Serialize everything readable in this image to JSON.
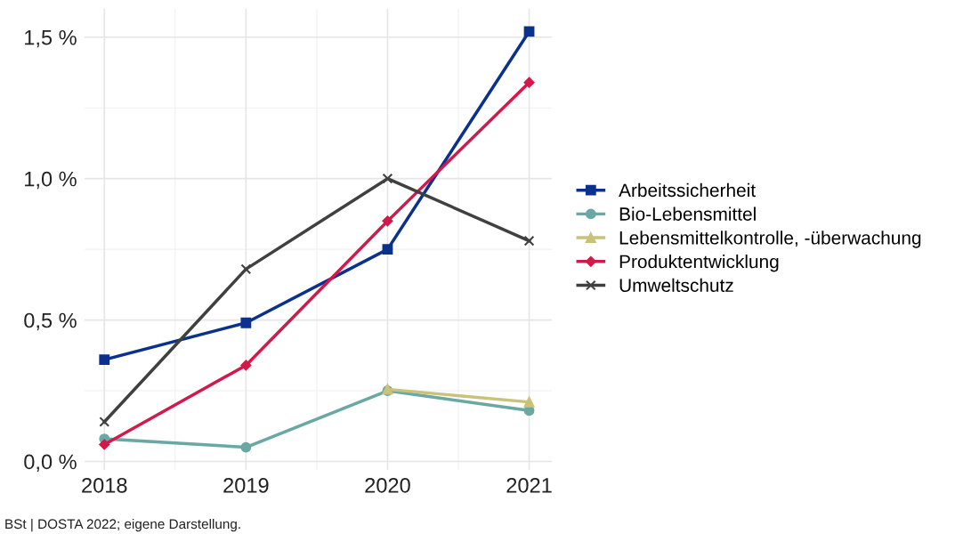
{
  "chart_data": {
    "type": "line",
    "x": [
      2018,
      2019,
      2020,
      2021
    ],
    "xlim": [
      2017.86,
      2021.16
    ],
    "xticks": [
      2018,
      2019,
      2020,
      2021
    ],
    "ylim": [
      -0.03,
      1.6
    ],
    "yticks": [
      {
        "value": 0,
        "label": "0,0 %"
      },
      {
        "value": 0.5,
        "label": "0,5 %"
      },
      {
        "value": 1.0,
        "label": "1,0 %"
      },
      {
        "value": 1.5,
        "label": "1,5 %"
      }
    ],
    "grid": true,
    "legend": "right",
    "series": [
      {
        "name": "Arbeitssicherheit",
        "color": "#0b318f",
        "marker": "square",
        "values": [
          0.36,
          0.49,
          0.75,
          1.52
        ]
      },
      {
        "name": "Bio-Lebensmittel",
        "color": "#6aa8a4",
        "marker": "circle",
        "values": [
          0.08,
          0.05,
          0.25,
          0.18
        ]
      },
      {
        "name": "Lebensmittelkontrolle, -überwachung",
        "color": "#c9c27a",
        "marker": "triangle",
        "values": [
          null,
          null,
          0.255,
          0.21
        ]
      },
      {
        "name": "Produktentwicklung",
        "color": "#d3184a",
        "marker": "diamond",
        "values": [
          0.06,
          0.34,
          0.85,
          1.34
        ]
      },
      {
        "name": "Umweltschutz",
        "color": "#404040",
        "marker": "cross",
        "values": [
          0.14,
          0.68,
          1.0,
          0.78
        ]
      }
    ],
    "annotations": [
      "BSt | DOSTA 2022; eigene Darstellung."
    ]
  }
}
